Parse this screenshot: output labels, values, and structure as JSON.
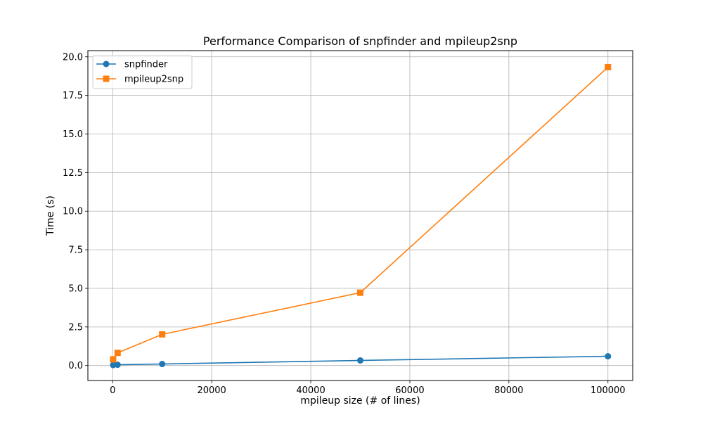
{
  "chart_data": {
    "type": "line",
    "title": "Performance Comparison of snpfinder and mpileup2snp",
    "xlabel": "mpileup size (# of lines)",
    "ylabel": "Time (s)",
    "xlim": [
      -5000,
      105000
    ],
    "ylim": [
      -0.97,
      20.4
    ],
    "xticks": [
      0,
      20000,
      40000,
      60000,
      80000,
      100000
    ],
    "xtick_labels": [
      "0",
      "20000",
      "40000",
      "60000",
      "80000",
      "100000"
    ],
    "yticks": [
      0,
      2.5,
      5,
      7.5,
      10,
      12.5,
      15,
      17.5,
      20
    ],
    "ytick_labels": [
      "0.0",
      "2.5",
      "5.0",
      "7.5",
      "10.0",
      "12.5",
      "15.0",
      "17.5",
      "20.0"
    ],
    "grid": true,
    "legend_position": "top-left",
    "series": [
      {
        "name": "snpfinder",
        "color": "#1f77b4",
        "marker": "circle",
        "x": [
          100,
          1000,
          10000,
          50000,
          100000
        ],
        "y": [
          0.03,
          0.05,
          0.1,
          0.33,
          0.6
        ]
      },
      {
        "name": "mpileup2snp",
        "color": "#ff7f0e",
        "marker": "square",
        "x": [
          100,
          1000,
          10000,
          50000,
          100000
        ],
        "y": [
          0.4,
          0.82,
          2.02,
          4.72,
          19.33
        ]
      }
    ]
  }
}
